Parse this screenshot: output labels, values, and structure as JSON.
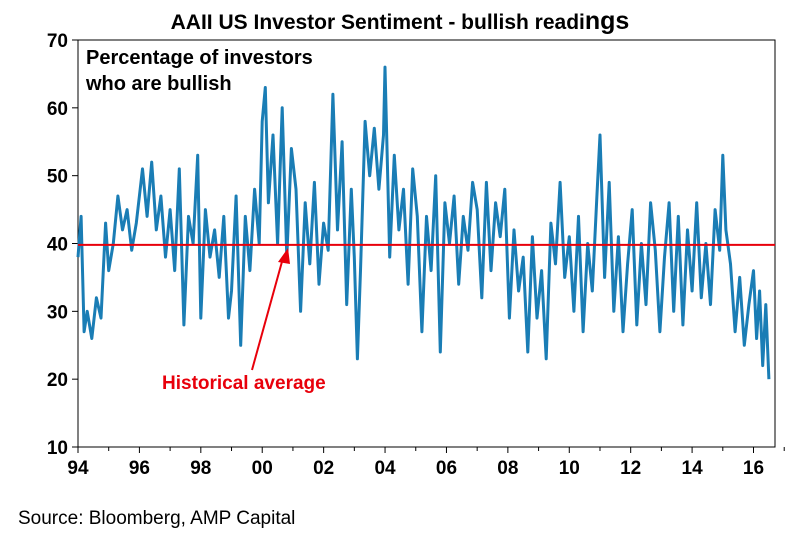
{
  "title": {
    "main": "AAII US Investor Sentiment - bullish readi",
    "tail": "ngs"
  },
  "source": "Source: Bloomberg, AMP Capital",
  "colors": {
    "series": "#1a7db5",
    "average": "#e8000b",
    "text": "#000000"
  },
  "chart_data": {
    "type": "line",
    "title": "AAII US Investor Sentiment - bullish readings",
    "annotation": [
      "Percentage of investors",
      "who are bullish"
    ],
    "x_ticks": [
      "94",
      "96",
      "98",
      "00",
      "02",
      "04",
      "06",
      "08",
      "10",
      "12",
      "14",
      "16"
    ],
    "y_ticks": [
      10,
      20,
      30,
      40,
      50,
      60,
      70
    ],
    "xlim": [
      1994.0,
      2016.7
    ],
    "ylim": [
      10,
      70
    ],
    "grid": false,
    "reference_line": {
      "label": "Historical average",
      "value": 39.8
    },
    "series": [
      {
        "x": [
          1994.0,
          1994.1,
          1994.2,
          1994.3,
          1994.45,
          1994.6,
          1994.75,
          1994.9,
          1995.0,
          1995.15,
          1995.3,
          1995.45,
          1995.6,
          1995.75,
          1995.9,
          1996.0,
          1996.1,
          1996.25,
          1996.4,
          1996.55,
          1996.7,
          1996.85,
          1997.0,
          1997.15,
          1997.3,
          1997.45,
          1997.6,
          1997.75,
          1997.9,
          1998.0,
          1998.15,
          1998.3,
          1998.45,
          1998.6,
          1998.75,
          1998.9,
          1999.0,
          1999.15,
          1999.3,
          1999.45,
          1999.6,
          1999.75,
          1999.9,
          2000.0,
          2000.1,
          2000.2,
          2000.35,
          2000.5,
          2000.65,
          2000.8,
          2000.95,
          2001.1,
          2001.25,
          2001.4,
          2001.55,
          2001.7,
          2001.85,
          2002.0,
          2002.15,
          2002.3,
          2002.45,
          2002.6,
          2002.75,
          2002.9,
          2003.0,
          2003.1,
          2003.2,
          2003.35,
          2003.5,
          2003.65,
          2003.8,
          2003.95,
          2004.0,
          2004.15,
          2004.3,
          2004.45,
          2004.6,
          2004.75,
          2004.9,
          2005.05,
          2005.2,
          2005.35,
          2005.5,
          2005.65,
          2005.8,
          2005.95,
          2006.1,
          2006.25,
          2006.4,
          2006.55,
          2006.7,
          2006.85,
          2007.0,
          2007.15,
          2007.3,
          2007.45,
          2007.6,
          2007.75,
          2007.9,
          2008.05,
          2008.2,
          2008.35,
          2008.5,
          2008.65,
          2008.8,
          2008.95,
          2009.1,
          2009.25,
          2009.4,
          2009.55,
          2009.7,
          2009.85,
          2010.0,
          2010.15,
          2010.3,
          2010.45,
          2010.6,
          2010.75,
          2010.9,
          2011.0,
          2011.15,
          2011.3,
          2011.45,
          2011.6,
          2011.75,
          2011.9,
          2012.05,
          2012.2,
          2012.35,
          2012.5,
          2012.65,
          2012.8,
          2012.95,
          2013.1,
          2013.25,
          2013.4,
          2013.55,
          2013.7,
          2013.85,
          2014.0,
          2014.15,
          2014.3,
          2014.45,
          2014.6,
          2014.75,
          2014.9,
          2015.0,
          2015.1,
          2015.25,
          2015.4,
          2015.55,
          2015.7,
          2015.85,
          2016.0,
          2016.1,
          2016.2,
          2016.3,
          2016.4,
          2016.5
        ],
        "y": [
          38,
          44,
          27,
          30,
          26,
          32,
          29,
          43,
          36,
          40,
          47,
          42,
          45,
          39,
          43,
          47,
          51,
          44,
          52,
          42,
          47,
          38,
          45,
          36,
          51,
          28,
          44,
          40,
          53,
          29,
          45,
          38,
          42,
          35,
          44,
          29,
          33,
          47,
          25,
          44,
          36,
          48,
          40,
          58,
          63,
          46,
          56,
          40,
          60,
          38,
          54,
          48,
          30,
          46,
          37,
          49,
          34,
          43,
          39,
          62,
          42,
          55,
          31,
          48,
          38,
          23,
          36,
          58,
          50,
          57,
          48,
          56,
          66,
          38,
          53,
          42,
          48,
          34,
          51,
          44,
          27,
          44,
          36,
          50,
          24,
          46,
          40,
          47,
          34,
          44,
          39,
          49,
          45,
          32,
          49,
          36,
          46,
          41,
          48,
          29,
          42,
          33,
          38,
          24,
          41,
          29,
          36,
          23,
          43,
          37,
          49,
          35,
          41,
          30,
          44,
          27,
          40,
          33,
          47,
          56,
          35,
          49,
          30,
          41,
          27,
          37,
          45,
          28,
          40,
          31,
          46,
          39,
          27,
          38,
          46,
          30,
          44,
          28,
          42,
          33,
          46,
          32,
          40,
          31,
          45,
          39,
          53,
          42,
          37,
          27,
          35,
          25,
          31,
          36,
          26,
          33,
          22,
          31,
          20
        ]
      }
    ]
  }
}
